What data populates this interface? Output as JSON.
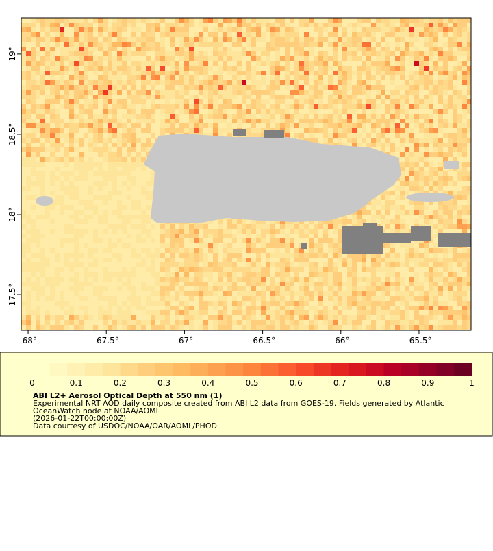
{
  "map": {
    "xlim": [
      -68.044,
      -65.167
    ],
    "ylim": [
      17.278,
      19.226
    ],
    "xticks": [
      {
        "value": -68,
        "label": "-68°"
      },
      {
        "value": -67.5,
        "label": "-67.5°"
      },
      {
        "value": -67,
        "label": "-67°"
      },
      {
        "value": -66.5,
        "label": "-66.5°"
      },
      {
        "value": -66,
        "label": "-66°"
      },
      {
        "value": -65.5,
        "label": "-65.5°"
      }
    ],
    "yticks": [
      {
        "value": 19,
        "label": "19°"
      },
      {
        "value": 18.5,
        "label": "18.5°"
      },
      {
        "value": 18,
        "label": "18°"
      },
      {
        "value": 17.5,
        "label": "17.5°"
      }
    ]
  },
  "colorbar": {
    "lim": [
      0,
      1
    ],
    "ticks": [
      0,
      0.1,
      0.2,
      0.3,
      0.4,
      0.5,
      0.6,
      0.7,
      0.8,
      0.9,
      1
    ],
    "colors": [
      "#ffffcc",
      "#fff8c0",
      "#fff2b4",
      "#ffeca8",
      "#fee59c",
      "#fed98a",
      "#fece7c",
      "#fec56f",
      "#febb62",
      "#fdae59",
      "#fda04f",
      "#fd9346",
      "#fd853e",
      "#fc7136",
      "#fb5e30",
      "#f64a2a",
      "#ee3624",
      "#e3241f",
      "#d8171f",
      "#ca0b22",
      "#bb0026",
      "#a80026",
      "#940026",
      "#800026",
      "#6c0022"
    ]
  },
  "legend": {
    "title": "ABI L2+ Aerosol Optical Depth at 550 nm (1)",
    "lines": [
      "Experimental NRT AOD daily composite created from ABI L2 data from GOES-19. Fields generated by Atlantic",
      "OceanWatch node at NOAA/AOML",
      "(2026-01-22T00:00:00Z)",
      "Data courtesy of USDOC/NOAA/OAR/AOML/PHOD"
    ]
  }
}
